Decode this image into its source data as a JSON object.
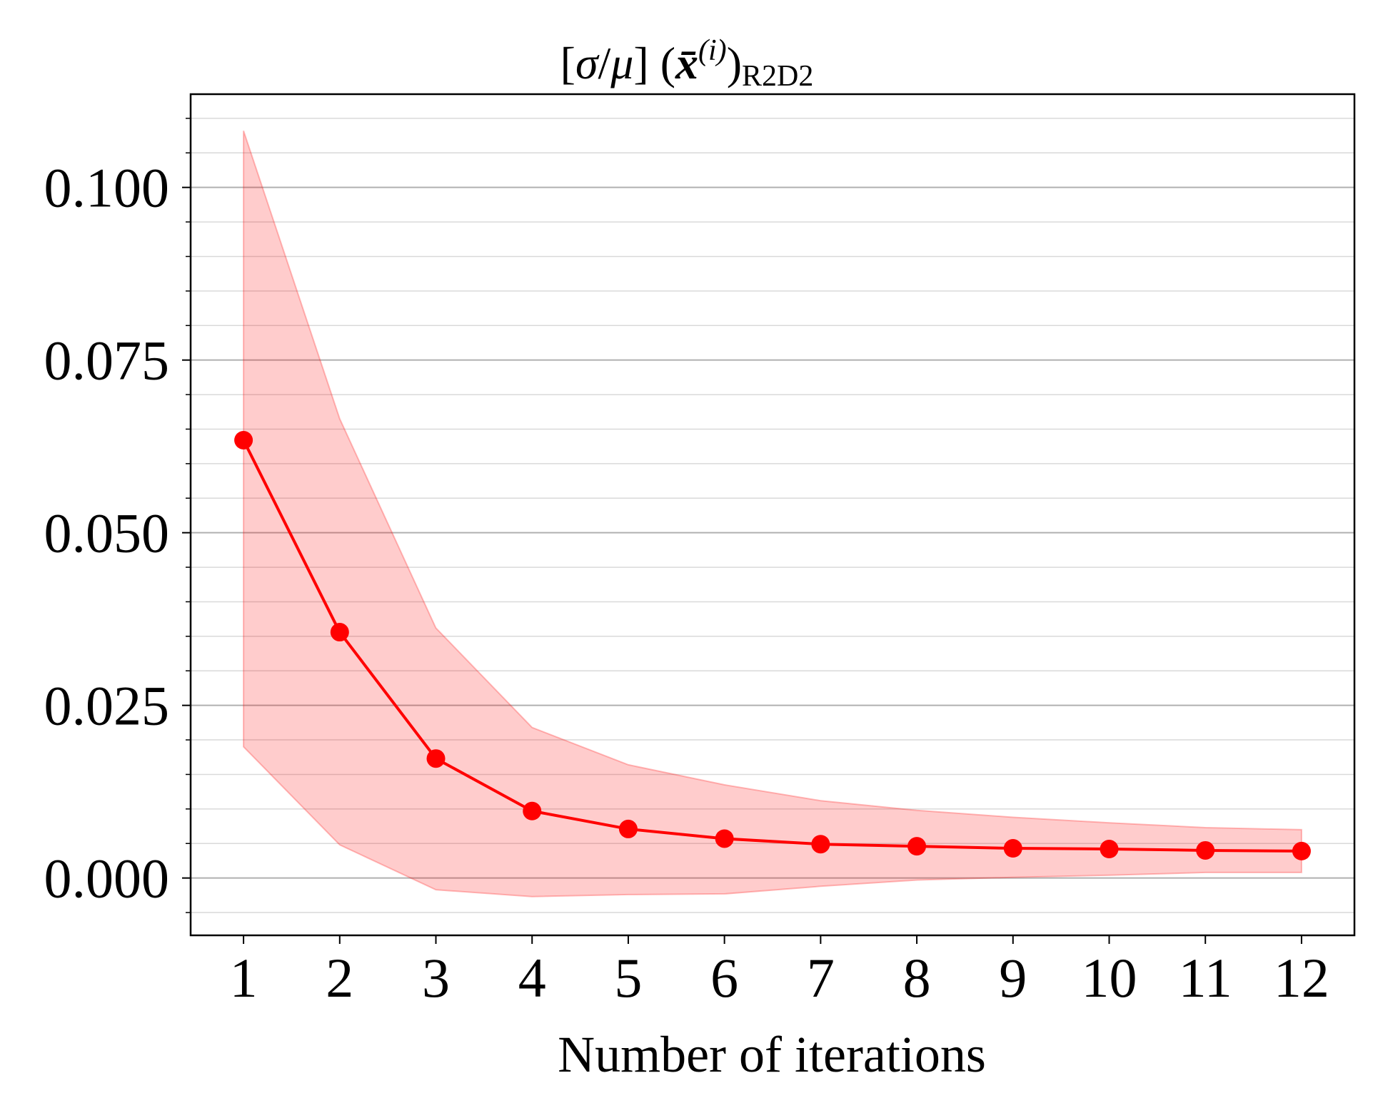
{
  "chart_data": {
    "type": "line",
    "title": {
      "open_bracket": "[",
      "sigma": "σ",
      "slash": "/",
      "mu": "μ",
      "close_bracket": "]",
      "open_paren": "(",
      "x_bar": "x̄",
      "superscript": "(i)",
      "close_paren": ")",
      "subscript": "R2D2"
    },
    "xlabel": "Number of iterations",
    "ylabel": "",
    "x": [
      1,
      2,
      3,
      4,
      5,
      6,
      7,
      8,
      9,
      10,
      11,
      12
    ],
    "xticks": [
      "1",
      "2",
      "3",
      "4",
      "5",
      "6",
      "7",
      "8",
      "9",
      "10",
      "11",
      "12"
    ],
    "xlim": [
      0.45,
      12.55
    ],
    "ylim": [
      -0.0083,
      0.1135
    ],
    "yticks": [
      "0.000",
      "0.025",
      "0.050",
      "0.075",
      "0.100"
    ],
    "ytick_values": [
      0,
      0.025,
      0.05,
      0.075,
      0.1
    ],
    "minor_ytick_step": 0.005,
    "grid": true,
    "series": [
      {
        "name": "mean",
        "color": "#ff0000",
        "values": [
          0.0634,
          0.0356,
          0.0173,
          0.0097,
          0.0071,
          0.0057,
          0.0049,
          0.0046,
          0.0043,
          0.0042,
          0.004,
          0.0039
        ]
      }
    ],
    "band": {
      "color": "#ff0000",
      "opacity": 0.2,
      "upper": [
        0.1082,
        0.0665,
        0.0362,
        0.0218,
        0.0164,
        0.0135,
        0.0112,
        0.0098,
        0.0088,
        0.008,
        0.0073,
        0.007
      ],
      "lower": [
        0.019,
        0.0048,
        -0.0017,
        -0.0027,
        -0.0024,
        -0.0023,
        -0.0012,
        -0.0003,
        0.0001,
        0.0004,
        0.0008,
        0.0008
      ]
    }
  }
}
